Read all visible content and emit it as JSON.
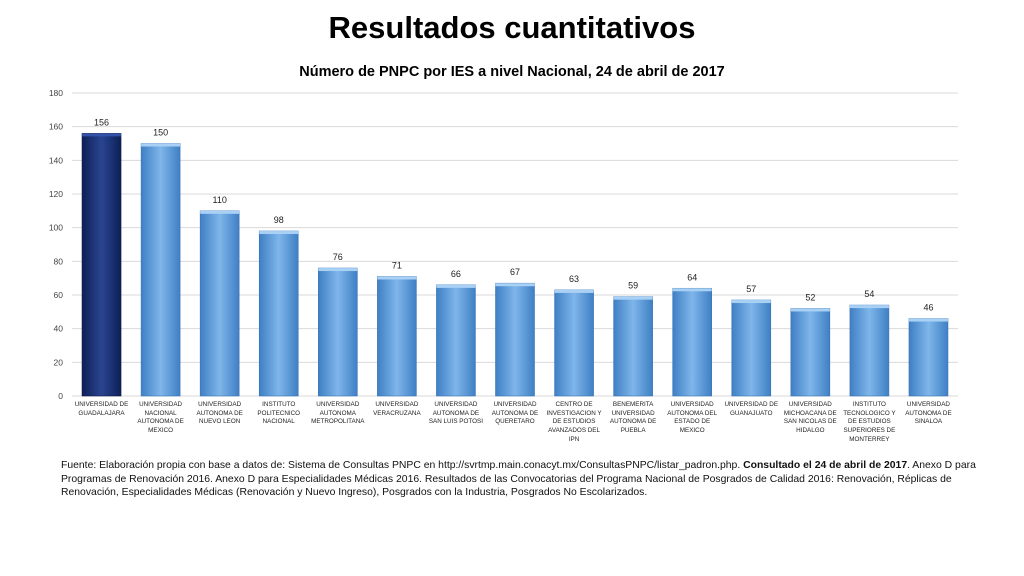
{
  "header": {
    "title": "Resultados cuantitativos"
  },
  "chart_data": {
    "type": "bar",
    "title": "Número de PNPC por IES a nivel Nacional, 24 de abril de 2017",
    "ylim": [
      0,
      180
    ],
    "yticks": [
      0,
      20,
      40,
      60,
      80,
      100,
      120,
      140,
      160,
      180
    ],
    "grid": true,
    "categories": [
      "UNIVERSIDAD DE GUADALAJARA",
      "UNIVERSIDAD NACIONAL AUTONOMA DE MEXICO",
      "UNIVERSIDAD AUTONOMA DE NUEVO LEON",
      "INSTITUTO POLITECNICO NACIONAL",
      "UNIVERSIDAD AUTONOMA METROPOLITANA",
      "UNIVERSIDAD VERACRUZANA",
      "UNIVERSIDAD AUTONOMA DE SAN LUIS POTOSI",
      "UNIVERSIDAD AUTONOMA DE QUERETARO",
      "CENTRO DE INVESTIGACION Y DE ESTUDIOS AVANZADOS DEL IPN",
      "BENEMERITA UNIVERSIDAD AUTONOMA DE PUEBLA",
      "UNIVERSIDAD AUTONOMA DEL ESTADO DE MEXICO",
      "UNIVERSIDAD DE GUANAJUATO",
      "UNIVERSIDAD MICHOACANA DE SAN NICOLAS DE HIDALGO",
      "INSTITUTO TECNOLOGICO Y DE ESTUDIOS SUPERIORES DE MONTERREY",
      "UNIVERSIDAD AUTONOMA DE SINALOA"
    ],
    "values": [
      156,
      150,
      110,
      98,
      76,
      71,
      66,
      67,
      63,
      59,
      64,
      57,
      52,
      54,
      46
    ],
    "colors": {
      "highlight": "#1a2f6e",
      "bar": "#5b9bd5"
    }
  },
  "source": {
    "text1": "Fuente: Elaboración propia con base a datos de: Sistema de Consultas PNPC en http://svrtmp.main.conacyt.mx/ConsultasPNPC/listar_padron.php.",
    "text_bold": "Consultado el 24 de abril de 2017",
    "text2": ". Anexo D para Programas de Renovación 2016.      Anexo D para Especialidades Médicas 2016. Resultados de las Convocatorias del Programa Nacional de Posgrados de Calidad 2016: Renovación, Réplicas de Renovación, Especialidades Médicas (Renovación y Nuevo Ingreso), Posgrados con la Industria, Posgrados No Escolarizados."
  }
}
